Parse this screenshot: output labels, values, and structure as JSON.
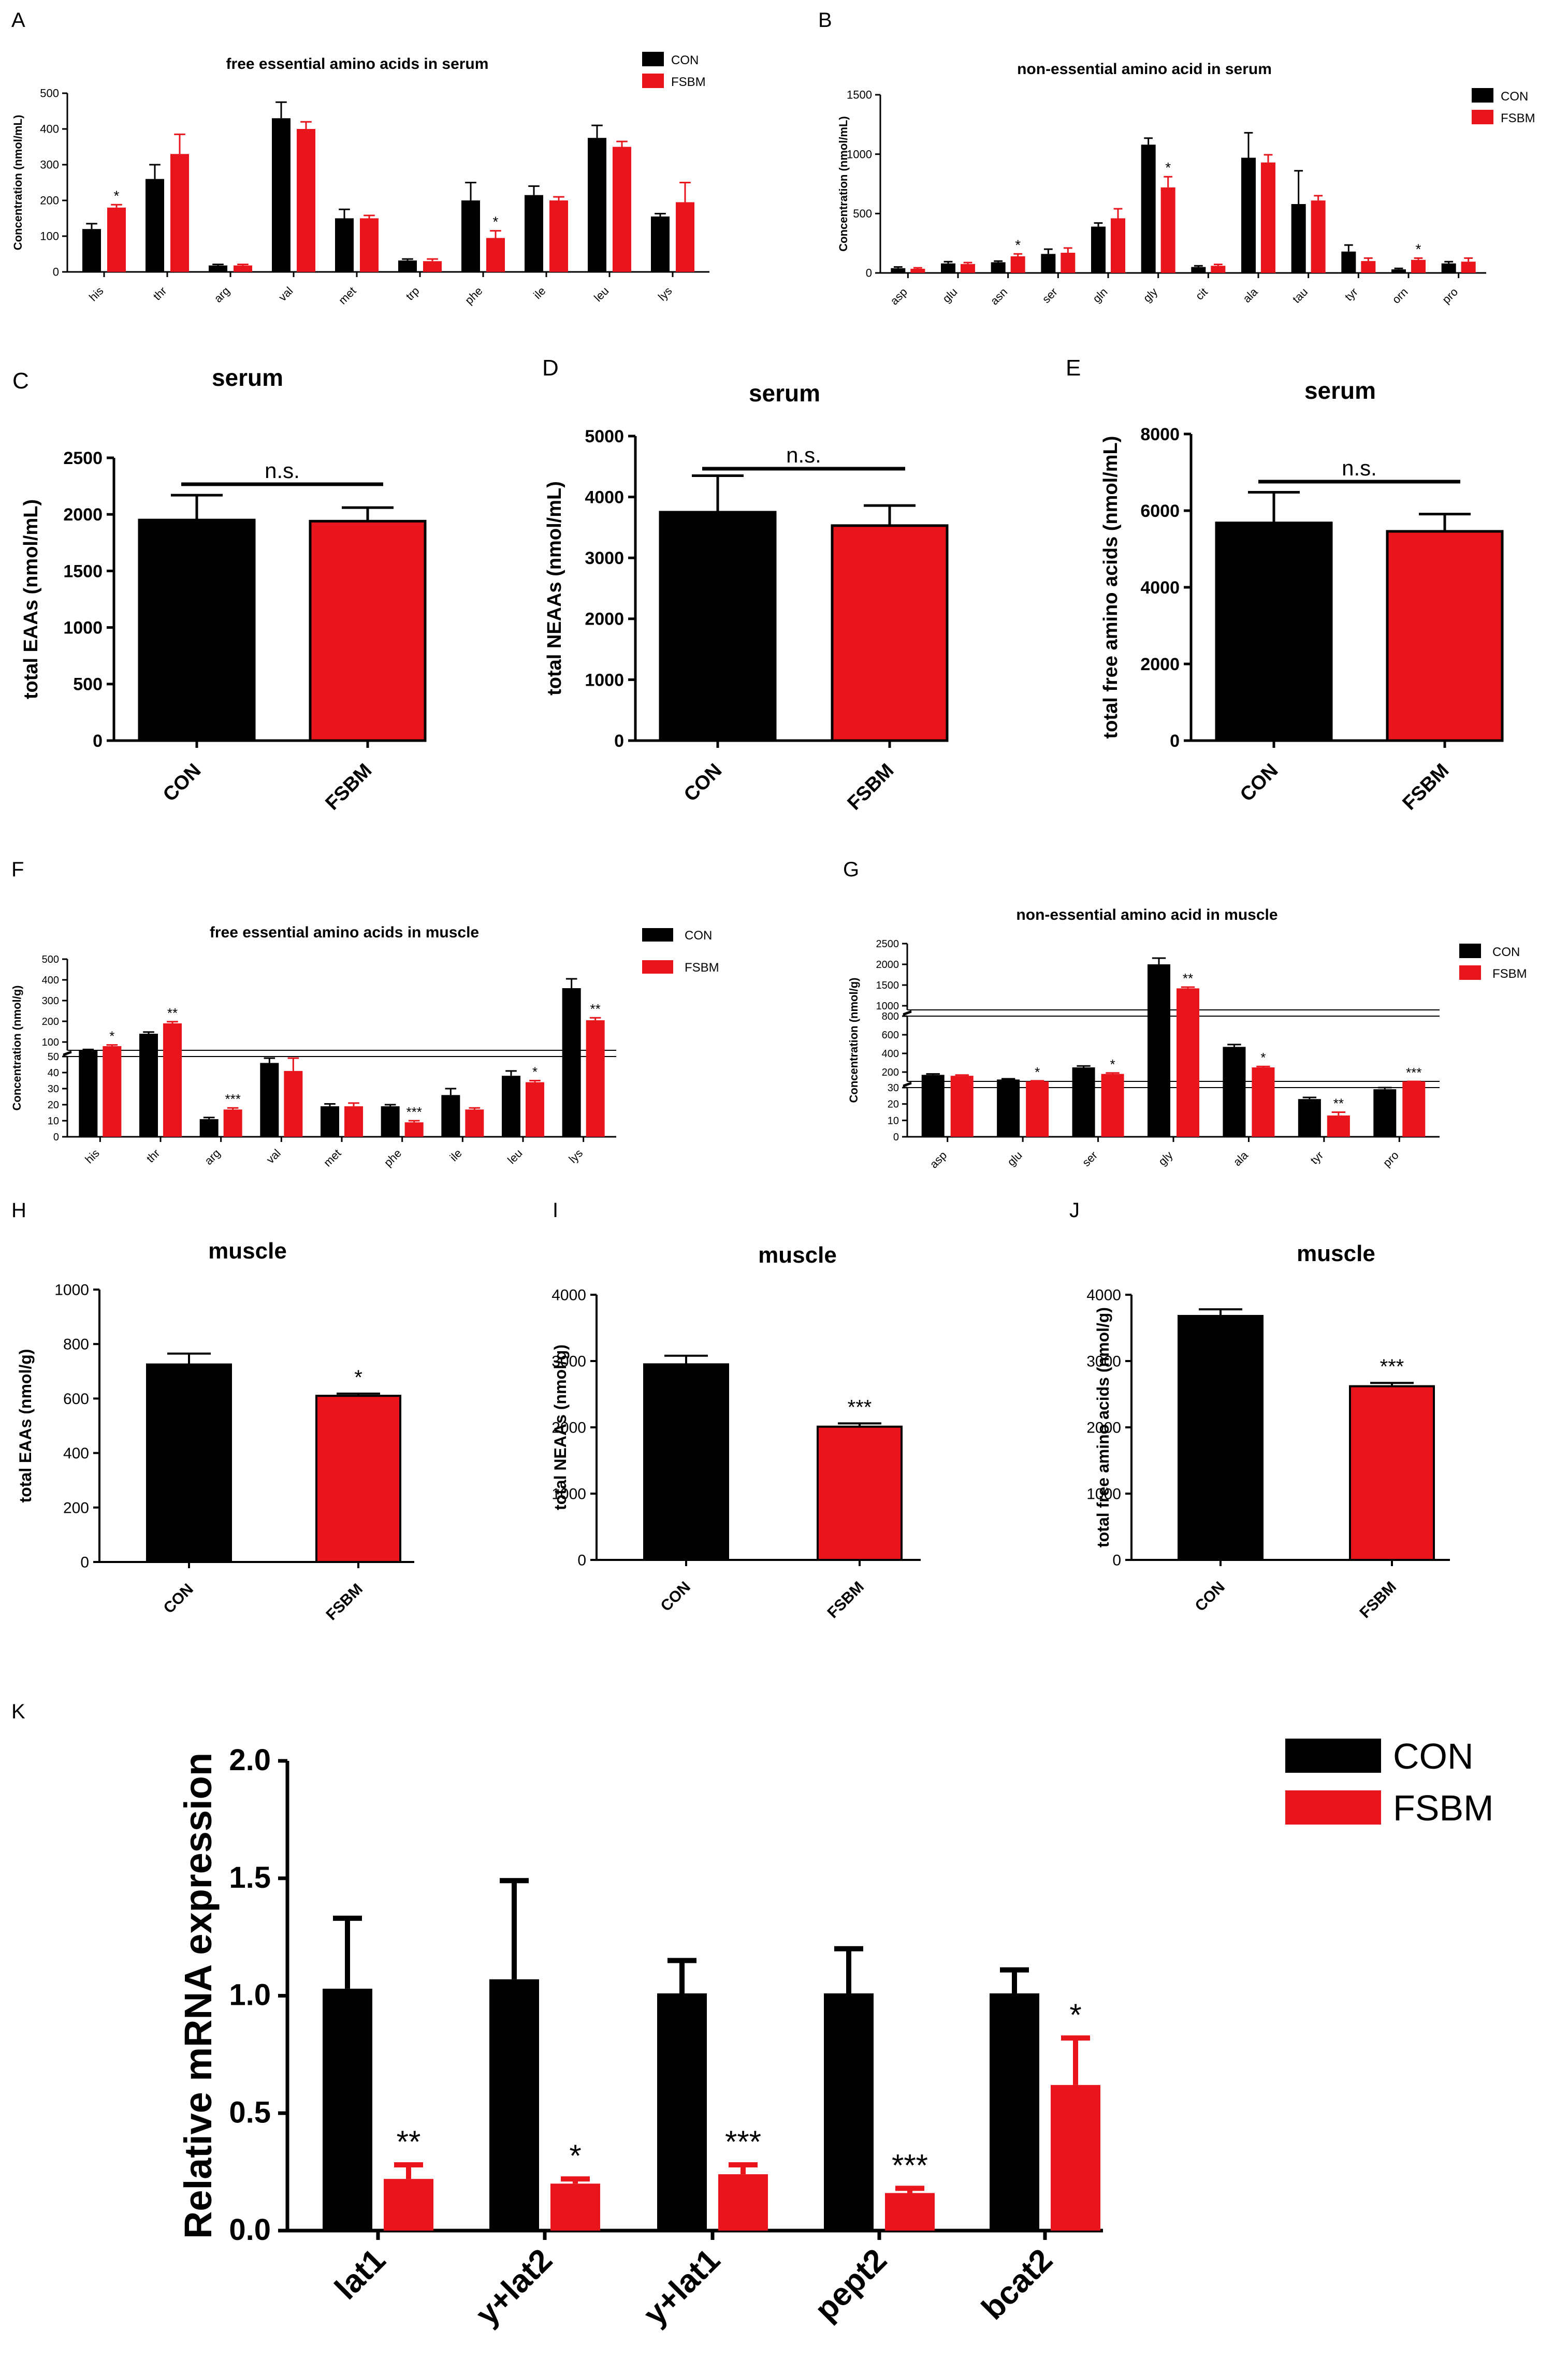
{
  "colors": {
    "con": "#000000",
    "fsbm": "#e8161c",
    "axis": "#000000"
  },
  "legend_labels": [
    "CON",
    "FSBM"
  ],
  "chart_data": [
    {
      "id": "A",
      "type": "bar",
      "panel_label": "A",
      "title": "free essential amino acids in serum",
      "xlabel": "",
      "ylabel": "Concentration (nmol/mL)",
      "categories": [
        "his",
        "thr",
        "arg",
        "val",
        "met",
        "trp",
        "phe",
        "ile",
        "leu",
        "lys"
      ],
      "ylim": [
        0,
        500
      ],
      "yticks": [
        0,
        100,
        200,
        300,
        400,
        500
      ],
      "legend": "top-right",
      "series": [
        {
          "name": "CON",
          "values": [
            120,
            260,
            18,
            430,
            150,
            32,
            200,
            215,
            375,
            155
          ],
          "errors": [
            15,
            40,
            3,
            45,
            25,
            4,
            50,
            25,
            35,
            8
          ]
        },
        {
          "name": "FSBM",
          "values": [
            180,
            330,
            18,
            400,
            150,
            30,
            95,
            200,
            350,
            195
          ],
          "errors": [
            8,
            55,
            3,
            20,
            8,
            6,
            20,
            10,
            15,
            55
          ]
        }
      ],
      "annotations": [
        {
          "category": "his",
          "series": "FSBM",
          "text": "*"
        },
        {
          "category": "phe",
          "series": "FSBM",
          "text": "*"
        }
      ]
    },
    {
      "id": "B",
      "type": "bar",
      "panel_label": "B",
      "title": "non-essential amino acid  in serum",
      "xlabel": "",
      "ylabel": "Concentration (nmol/mL)",
      "categories": [
        "asp",
        "glu",
        "asn",
        "ser",
        "gln",
        "gly",
        "cit",
        "ala",
        "tau",
        "tyr",
        "orn",
        "pro"
      ],
      "ylim": [
        0,
        1500
      ],
      "yticks": [
        0,
        500,
        1000,
        1500
      ],
      "legend": "top-right",
      "series": [
        {
          "name": "CON",
          "values": [
            40,
            80,
            90,
            160,
            390,
            1080,
            50,
            970,
            580,
            180,
            30,
            80
          ],
          "errors": [
            10,
            15,
            10,
            40,
            30,
            55,
            10,
            210,
            280,
            55,
            8,
            15
          ]
        },
        {
          "name": "FSBM",
          "values": [
            35,
            75,
            140,
            170,
            460,
            720,
            60,
            930,
            610,
            100,
            110,
            95
          ],
          "errors": [
            8,
            12,
            20,
            40,
            80,
            90,
            12,
            65,
            40,
            25,
            15,
            30
          ]
        }
      ],
      "annotations": [
        {
          "category": "asn",
          "series": "FSBM",
          "text": "*"
        },
        {
          "category": "gly",
          "series": "FSBM",
          "text": "*"
        },
        {
          "category": "orn",
          "series": "FSBM",
          "text": "*"
        }
      ]
    },
    {
      "id": "C",
      "type": "bar",
      "panel_label": "C",
      "title": "serum",
      "xlabel": "",
      "ylabel": "total EAAs (nmol/mL)",
      "categories": [
        "CON",
        "FSBM"
      ],
      "ylim": [
        0,
        2500
      ],
      "yticks": [
        0,
        500,
        1000,
        1500,
        2000,
        2500
      ],
      "values": [
        1950,
        1940
      ],
      "errors": [
        220,
        120
      ],
      "significance": "n.s."
    },
    {
      "id": "D",
      "type": "bar",
      "panel_label": "D",
      "title": "serum",
      "xlabel": "",
      "ylabel": "total NEAAs (nmol/mL)",
      "categories": [
        "CON",
        "FSBM"
      ],
      "ylim": [
        0,
        5000
      ],
      "yticks": [
        0,
        1000,
        2000,
        3000,
        4000,
        5000
      ],
      "values": [
        3750,
        3530
      ],
      "errors": [
        600,
        330
      ],
      "significance": "n.s."
    },
    {
      "id": "E",
      "type": "bar",
      "panel_label": "E",
      "title": "serum",
      "xlabel": "",
      "ylabel": "total free amino acids (nmol/mL)",
      "categories": [
        "CON",
        "FSBM"
      ],
      "ylim": [
        0,
        8000
      ],
      "yticks": [
        0,
        2000,
        4000,
        6000,
        8000
      ],
      "values": [
        5680,
        5460
      ],
      "errors": [
        800,
        450
      ],
      "significance": "n.s."
    },
    {
      "id": "F",
      "type": "bar",
      "panel_label": "F",
      "title": "free essential amino acids in muscle",
      "xlabel": "",
      "ylabel": "Concentration (nmol/g)",
      "categories": [
        "his",
        "thr",
        "arg",
        "val",
        "met",
        "phe",
        "ile",
        "leu",
        "lys"
      ],
      "axis_scale": "broken",
      "axis_segments": [
        {
          "range": [
            0,
            50
          ],
          "ticks": [
            0,
            10,
            20,
            30,
            40,
            50
          ]
        },
        {
          "range": [
            60,
            500
          ],
          "ticks": [
            100,
            200,
            300,
            400,
            500
          ]
        }
      ],
      "legend": "top-right",
      "series": [
        {
          "name": "CON",
          "values": [
            60,
            140,
            11,
            46,
            19,
            19,
            26,
            38,
            360
          ],
          "errors": [
            4,
            8,
            1,
            3,
            1.5,
            1,
            4,
            3,
            45
          ]
        },
        {
          "name": "FSBM",
          "values": [
            80,
            190,
            17,
            41,
            19,
            9,
            17,
            34,
            205
          ],
          "errors": [
            6,
            8,
            1,
            8,
            2,
            1,
            1,
            1,
            12
          ]
        }
      ],
      "annotations": [
        {
          "category": "his",
          "series": "FSBM",
          "text": "*"
        },
        {
          "category": "thr",
          "series": "FSBM",
          "text": "**"
        },
        {
          "category": "arg",
          "series": "FSBM",
          "text": "***"
        },
        {
          "category": "phe",
          "series": "FSBM",
          "text": "***"
        },
        {
          "category": "leu",
          "series": "FSBM",
          "text": "*"
        },
        {
          "category": "lys",
          "series": "FSBM",
          "text": "**"
        }
      ]
    },
    {
      "id": "G",
      "type": "bar",
      "panel_label": "G",
      "title": "non-essential amino acid  in muscle",
      "xlabel": "",
      "ylabel": "Concentration (nmol/g)",
      "categories": [
        "asp",
        "glu",
        "ser",
        "gly",
        "ala",
        "tyr",
        "pro"
      ],
      "axis_scale": "broken",
      "axis_segments": [
        {
          "range": [
            0,
            30
          ],
          "ticks": [
            0,
            10,
            20,
            30
          ]
        },
        {
          "range": [
            100,
            800
          ],
          "ticks": [
            200,
            400,
            600,
            800
          ]
        },
        {
          "range": [
            900,
            2500
          ],
          "ticks": [
            1000,
            1500,
            2000,
            2500
          ]
        }
      ],
      "legend": "top-right",
      "series": [
        {
          "name": "CON",
          "values": [
            170,
            120,
            250,
            2000,
            470,
            23,
            29
          ],
          "errors": [
            10,
            8,
            15,
            150,
            25,
            1,
            1
          ]
        },
        {
          "name": "FSBM",
          "values": [
            160,
            100,
            180,
            1420,
            250,
            13,
            31
          ],
          "errors": [
            8,
            6,
            10,
            30,
            10,
            2,
            1
          ]
        }
      ],
      "annotations": [
        {
          "category": "glu",
          "series": "FSBM",
          "text": "*"
        },
        {
          "category": "ser",
          "series": "FSBM",
          "text": "*"
        },
        {
          "category": "gly",
          "series": "FSBM",
          "text": "**"
        },
        {
          "category": "ala",
          "series": "FSBM",
          "text": "*"
        },
        {
          "category": "tyr",
          "series": "FSBM",
          "text": "**"
        },
        {
          "category": "pro",
          "series": "FSBM",
          "text": "***"
        }
      ]
    },
    {
      "id": "H",
      "type": "bar",
      "panel_label": "H",
      "title": "muscle",
      "xlabel": "",
      "ylabel": "total EAAs (nmol/g)",
      "categories": [
        "CON",
        "FSBM"
      ],
      "ylim": [
        0,
        1000
      ],
      "yticks": [
        0,
        200,
        400,
        600,
        800,
        1000
      ],
      "values": [
        725,
        610
      ],
      "errors": [
        40,
        8
      ],
      "significance": "*"
    },
    {
      "id": "I",
      "type": "bar",
      "panel_label": "I",
      "title": "muscle",
      "xlabel": "",
      "ylabel": "total NEAAs (nmol/g)",
      "categories": [
        "CON",
        "FSBM"
      ],
      "ylim": [
        0,
        4000
      ],
      "yticks": [
        0,
        1000,
        2000,
        3000,
        4000
      ],
      "values": [
        2950,
        2010
      ],
      "errors": [
        130,
        50
      ],
      "significance": "***"
    },
    {
      "id": "J",
      "type": "bar",
      "panel_label": "J",
      "title": "muscle",
      "xlabel": "",
      "ylabel": "total free amino acids (nmol/g)",
      "categories": [
        "CON",
        "FSBM"
      ],
      "ylim": [
        0,
        4000
      ],
      "yticks": [
        0,
        1000,
        2000,
        3000,
        4000
      ],
      "values": [
        3680,
        2620
      ],
      "errors": [
        100,
        50
      ],
      "significance": "***"
    },
    {
      "id": "K",
      "type": "bar",
      "panel_label": "K",
      "title": "",
      "xlabel": "",
      "ylabel": "Relative mRNA expression",
      "categories": [
        "lat1",
        "y+lat2",
        "y+lat1",
        "pept2",
        "bcat2"
      ],
      "ylim": [
        0,
        2.0
      ],
      "yticks": [
        0.0,
        0.5,
        1.0,
        1.5,
        2.0
      ],
      "legend": "top-right",
      "series": [
        {
          "name": "CON",
          "values": [
            1.03,
            1.07,
            1.01,
            1.01,
            1.01
          ],
          "errors": [
            0.3,
            0.42,
            0.14,
            0.19,
            0.1
          ]
        },
        {
          "name": "FSBM",
          "values": [
            0.22,
            0.2,
            0.24,
            0.16,
            0.62
          ],
          "errors": [
            0.06,
            0.02,
            0.04,
            0.02,
            0.2
          ]
        }
      ],
      "annotations": [
        {
          "category": "lat1",
          "series": "FSBM",
          "text": "**"
        },
        {
          "category": "y+lat2",
          "series": "FSBM",
          "text": "*"
        },
        {
          "category": "y+lat1",
          "series": "FSBM",
          "text": "***"
        },
        {
          "category": "pept2",
          "series": "FSBM",
          "text": "***"
        },
        {
          "category": "bcat2",
          "series": "FSBM",
          "text": "*"
        }
      ]
    }
  ]
}
